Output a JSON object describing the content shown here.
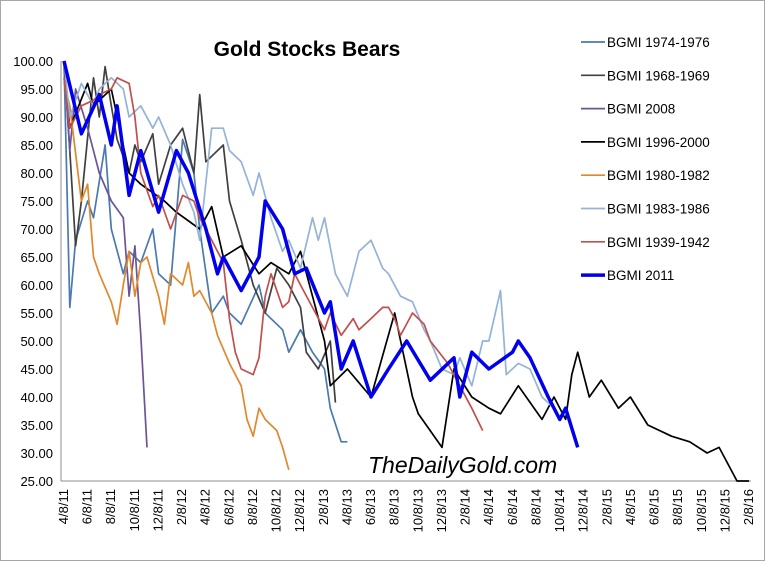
{
  "chart_data": {
    "type": "line",
    "title": "Gold Stocks Bears",
    "watermark": "TheDailyGold.com",
    "xlabel": "",
    "ylabel": "",
    "ylim": [
      25,
      100
    ],
    "xlim": [
      "2011-04-08",
      "2016-02-08"
    ],
    "grid": false,
    "legend_position": "right",
    "y_ticks": [
      "100.00",
      "95.00",
      "90.00",
      "85.00",
      "80.00",
      "75.00",
      "70.00",
      "65.00",
      "60.00",
      "55.00",
      "50.00",
      "45.00",
      "40.00",
      "35.00",
      "30.00",
      "25.00"
    ],
    "x_ticks": [
      "4/8/11",
      "6/8/11",
      "8/8/11",
      "10/8/11",
      "12/8/11",
      "2/8/12",
      "4/8/12",
      "6/8/12",
      "8/8/12",
      "10/8/12",
      "12/8/12",
      "2/8/13",
      "4/8/13",
      "6/8/13",
      "8/8/13",
      "10/8/13",
      "12/8/13",
      "2/8/14",
      "4/8/14",
      "6/8/14",
      "8/8/14",
      "10/8/14",
      "12/8/14",
      "2/8/15",
      "4/8/15",
      "6/8/15",
      "8/8/15",
      "10/8/15",
      "12/8/15",
      "2/8/16"
    ],
    "series": [
      {
        "name": "BGMI 1974-1976",
        "color": "#4a7ab0",
        "dates": [
          "2011-04-08",
          "2011-04-23",
          "2011-05-08",
          "2011-06-08",
          "2011-06-23",
          "2011-07-23",
          "2011-08-08",
          "2011-09-08",
          "2011-09-23",
          "2011-10-23",
          "2011-11-23",
          "2011-12-08",
          "2012-01-08",
          "2012-02-08",
          "2012-03-08",
          "2012-03-23",
          "2012-04-23",
          "2012-05-23",
          "2012-06-08",
          "2012-07-08",
          "2012-08-23",
          "2012-09-08",
          "2012-10-23",
          "2012-11-08",
          "2012-12-08",
          "2013-01-08",
          "2013-02-08",
          "2013-02-23",
          "2013-03-23",
          "2013-04-08"
        ],
        "values": [
          100,
          56,
          68,
          75,
          72,
          85,
          70,
          62,
          66,
          64,
          70,
          62,
          60,
          86,
          80,
          70,
          55,
          58,
          55,
          53,
          60,
          55,
          52,
          48,
          52,
          48,
          45,
          38,
          32,
          32
        ]
      },
      {
        "name": "BGMI 1968-1969",
        "color": "#404040",
        "dates": [
          "2011-04-08",
          "2011-04-23",
          "2011-05-08",
          "2011-05-23",
          "2011-06-23",
          "2011-07-08",
          "2011-07-23",
          "2011-08-08",
          "2011-08-23",
          "2011-09-23",
          "2011-10-08",
          "2011-10-23",
          "2011-11-23",
          "2011-12-08",
          "2012-01-08",
          "2012-02-08",
          "2012-03-08",
          "2012-03-23",
          "2012-04-08",
          "2012-05-23",
          "2012-06-08",
          "2012-07-08",
          "2012-08-08",
          "2012-09-08",
          "2012-10-08",
          "2012-11-08",
          "2012-12-08",
          "2012-12-23",
          "2013-01-23",
          "2013-02-23",
          "2013-03-08"
        ],
        "values": [
          100,
          84,
          67,
          75,
          97,
          90,
          99,
          92,
          86,
          80,
          85,
          82,
          87,
          78,
          85,
          88,
          80,
          94,
          82,
          85,
          75,
          68,
          60,
          55,
          63,
          60,
          56,
          48,
          45,
          50,
          39
        ]
      },
      {
        "name": "BGMI 2008",
        "color": "#6b5597",
        "dates": [
          "2011-04-08",
          "2011-04-23",
          "2011-05-08",
          "2011-06-08",
          "2011-07-08",
          "2011-08-08",
          "2011-09-08",
          "2011-09-23",
          "2011-10-08",
          "2011-10-23",
          "2011-11-08"
        ],
        "values": [
          100,
          84,
          95,
          88,
          80,
          75,
          72,
          58,
          67,
          51,
          31
        ]
      },
      {
        "name": "BGMI 1996-2000",
        "color": "#000000",
        "dates": [
          "2011-04-08",
          "2011-04-23",
          "2011-06-08",
          "2011-06-23",
          "2011-08-08",
          "2011-09-23",
          "2011-10-23",
          "2011-12-23",
          "2012-01-23",
          "2012-03-23",
          "2012-04-23",
          "2012-05-23",
          "2012-07-08",
          "2012-08-23",
          "2012-09-23",
          "2012-11-08",
          "2012-12-08",
          "2013-01-08",
          "2013-02-08",
          "2013-02-23",
          "2013-04-08",
          "2013-06-08",
          "2013-08-08",
          "2013-09-23",
          "2013-10-08",
          "2013-12-08",
          "2014-01-08",
          "2014-02-23",
          "2014-04-08",
          "2014-05-08",
          "2014-06-23",
          "2014-08-23",
          "2014-09-23",
          "2014-10-23",
          "2014-11-08",
          "2014-11-23",
          "2014-12-23",
          "2015-01-23",
          "2015-03-08",
          "2015-04-08",
          "2015-05-23",
          "2015-07-23",
          "2015-09-08",
          "2015-10-23",
          "2015-11-23",
          "2016-01-08",
          "2016-02-08"
        ],
        "values": [
          100,
          88,
          96,
          92,
          95,
          80,
          78,
          75,
          73,
          70,
          74,
          65,
          67,
          62,
          64,
          62,
          66,
          58,
          50,
          42,
          45,
          40,
          55,
          40,
          37,
          31,
          45,
          40,
          38,
          37,
          42,
          36,
          40,
          36,
          44,
          48,
          40,
          43,
          38,
          40,
          35,
          33,
          32,
          30,
          31,
          25,
          25
        ]
      },
      {
        "name": "BGMI 1980-1982",
        "color": "#e0882c",
        "dates": [
          "2011-04-08",
          "2011-04-23",
          "2011-05-23",
          "2011-06-08",
          "2011-06-23",
          "2011-07-08",
          "2011-08-08",
          "2011-08-23",
          "2011-09-08",
          "2011-09-23",
          "2011-10-08",
          "2011-10-23",
          "2011-11-08",
          "2011-12-08",
          "2011-12-23",
          "2012-01-08",
          "2012-02-08",
          "2012-02-23",
          "2012-03-08",
          "2012-03-23",
          "2012-04-23",
          "2012-05-08",
          "2012-06-08",
          "2012-07-08",
          "2012-07-23",
          "2012-08-08",
          "2012-08-23",
          "2012-09-08",
          "2012-10-08",
          "2012-10-23",
          "2012-11-08"
        ],
        "values": [
          96,
          92,
          75,
          78,
          65,
          62,
          57,
          53,
          60,
          66,
          58,
          64,
          65,
          58,
          53,
          62,
          60,
          64,
          58,
          59,
          55,
          51,
          46,
          42,
          36,
          33,
          38,
          36,
          34,
          31,
          27
        ]
      },
      {
        "name": "BGMI 1983-1986",
        "color": "#95b3d7",
        "dates": [
          "2011-04-08",
          "2011-04-23",
          "2011-05-23",
          "2011-06-23",
          "2011-07-08",
          "2011-08-08",
          "2011-09-08",
          "2011-09-23",
          "2011-10-23",
          "2011-11-23",
          "2011-12-08",
          "2012-01-08",
          "2012-02-08",
          "2012-03-08",
          "2012-03-23",
          "2012-04-23",
          "2012-05-23",
          "2012-06-08",
          "2012-07-08",
          "2012-08-08",
          "2012-08-23",
          "2012-09-23",
          "2012-10-23",
          "2012-11-08",
          "2012-12-08",
          "2013-01-08",
          "2013-01-23",
          "2013-02-08",
          "2013-03-08",
          "2013-04-08",
          "2013-05-08",
          "2013-06-08",
          "2013-07-08",
          "2013-07-23",
          "2013-08-23",
          "2013-09-23",
          "2013-10-23",
          "2013-11-08",
          "2013-12-08",
          "2014-01-08",
          "2014-01-23",
          "2014-02-23",
          "2014-03-23",
          "2014-04-08",
          "2014-05-08",
          "2014-05-23",
          "2014-06-23",
          "2014-07-23",
          "2014-08-23",
          "2014-09-23"
        ],
        "values": [
          100,
          90,
          96,
          92,
          95,
          97,
          95,
          90,
          92,
          88,
          90,
          85,
          78,
          73,
          68,
          88,
          88,
          84,
          82,
          76,
          80,
          72,
          66,
          68,
          63,
          72,
          68,
          72,
          62,
          58,
          66,
          68,
          63,
          62,
          58,
          57,
          52,
          50,
          45,
          44,
          47,
          42,
          50,
          50,
          59,
          44,
          46,
          45,
          40,
          38
        ]
      },
      {
        "name": "BGMI 1939-1942",
        "color": "#c0504d",
        "dates": [
          "2011-04-08",
          "2011-04-23",
          "2011-05-23",
          "2011-06-23",
          "2011-07-08",
          "2011-08-08",
          "2011-08-23",
          "2011-09-23",
          "2011-10-08",
          "2011-10-23",
          "2011-11-23",
          "2011-12-08",
          "2012-01-08",
          "2012-02-08",
          "2012-03-08",
          "2012-03-23",
          "2012-04-23",
          "2012-05-23",
          "2012-06-08",
          "2012-06-23",
          "2012-07-08",
          "2012-08-08",
          "2012-08-23",
          "2012-09-08",
          "2012-09-23",
          "2012-10-23",
          "2012-11-08",
          "2012-11-23",
          "2012-12-08",
          "2013-01-08",
          "2013-02-08",
          "2013-02-23",
          "2013-03-23",
          "2013-04-23",
          "2013-05-08",
          "2013-06-08",
          "2013-07-08",
          "2013-07-23",
          "2013-08-08",
          "2013-08-23",
          "2013-09-23",
          "2013-10-23",
          "2013-11-08",
          "2013-12-23",
          "2014-01-23",
          "2014-02-23",
          "2014-03-23"
        ],
        "values": [
          97,
          88,
          92,
          93,
          94,
          95,
          97,
          96,
          90,
          80,
          74,
          76,
          70,
          76,
          75,
          72,
          68,
          64,
          54,
          48,
          45,
          44,
          47,
          58,
          62,
          56,
          57,
          62,
          60,
          56,
          52,
          55,
          51,
          54,
          52,
          54,
          56,
          56,
          54,
          51,
          55,
          53,
          50,
          46,
          42,
          38,
          34
        ]
      },
      {
        "name": "BGMI 2011",
        "color": "#0000ee",
        "dates": [
          "2011-04-08",
          "2011-05-23",
          "2011-07-08",
          "2011-08-08",
          "2011-08-23",
          "2011-09-23",
          "2011-10-23",
          "2011-12-08",
          "2012-01-23",
          "2012-02-23",
          "2012-04-08",
          "2012-05-08",
          "2012-05-23",
          "2012-07-08",
          "2012-08-23",
          "2012-09-08",
          "2012-10-23",
          "2012-11-23",
          "2012-12-23",
          "2013-02-08",
          "2013-02-23",
          "2013-03-23",
          "2013-04-23",
          "2013-06-08",
          "2013-07-23",
          "2013-09-08",
          "2013-11-08",
          "2014-01-08",
          "2014-01-23",
          "2014-02-23",
          "2014-04-08",
          "2014-06-08",
          "2014-06-23",
          "2014-07-23",
          "2014-09-08",
          "2014-10-08",
          "2014-10-23",
          "2014-11-23"
        ],
        "values": [
          100,
          87,
          94,
          85,
          92,
          76,
          84,
          73,
          84,
          80,
          70,
          62,
          65,
          59,
          65,
          75,
          70,
          62,
          63,
          55,
          57,
          45,
          50,
          40,
          45,
          50,
          43,
          47,
          40,
          48,
          45,
          48,
          50,
          47,
          40,
          36,
          38,
          31
        ]
      }
    ]
  }
}
